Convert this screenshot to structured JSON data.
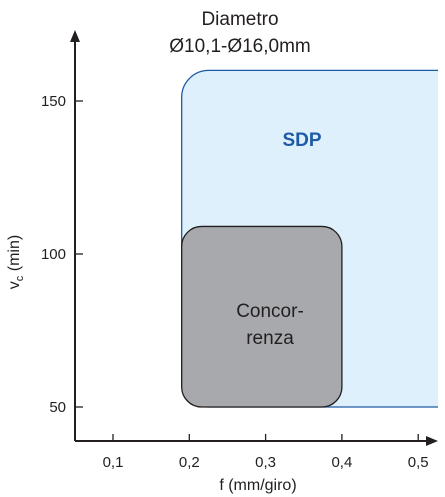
{
  "chart_data": {
    "type": "area",
    "title_lines": [
      "Diametro",
      "Ø10,1-Ø16,0mm"
    ],
    "xlabel": "f (mm/giro)",
    "ylabel_main": "v",
    "ylabel_sub": "c",
    "ylabel_suffix": " (min)",
    "xlim": [
      0.05,
      0.55
    ],
    "ylim": [
      40,
      170
    ],
    "x_ticks": [
      0.1,
      0.2,
      0.3,
      0.4,
      0.5
    ],
    "x_tick_labels": [
      "0,1",
      "0,2",
      "0,3",
      "0,4",
      "0,5"
    ],
    "y_ticks": [
      50,
      100,
      150
    ],
    "y_tick_labels": [
      "50",
      "100",
      "150"
    ],
    "regions": [
      {
        "name": "SDP",
        "x": [
          0.19,
          0.56
        ],
        "y": [
          50,
          160
        ],
        "fill": "#ddf0fb",
        "stroke": "#1f5aa6"
      },
      {
        "name_lines": [
          "Concor-",
          "renza"
        ],
        "x": [
          0.19,
          0.4
        ],
        "y": [
          50,
          109
        ],
        "fill": "#a7a9ac",
        "stroke": "#231f20"
      }
    ]
  }
}
